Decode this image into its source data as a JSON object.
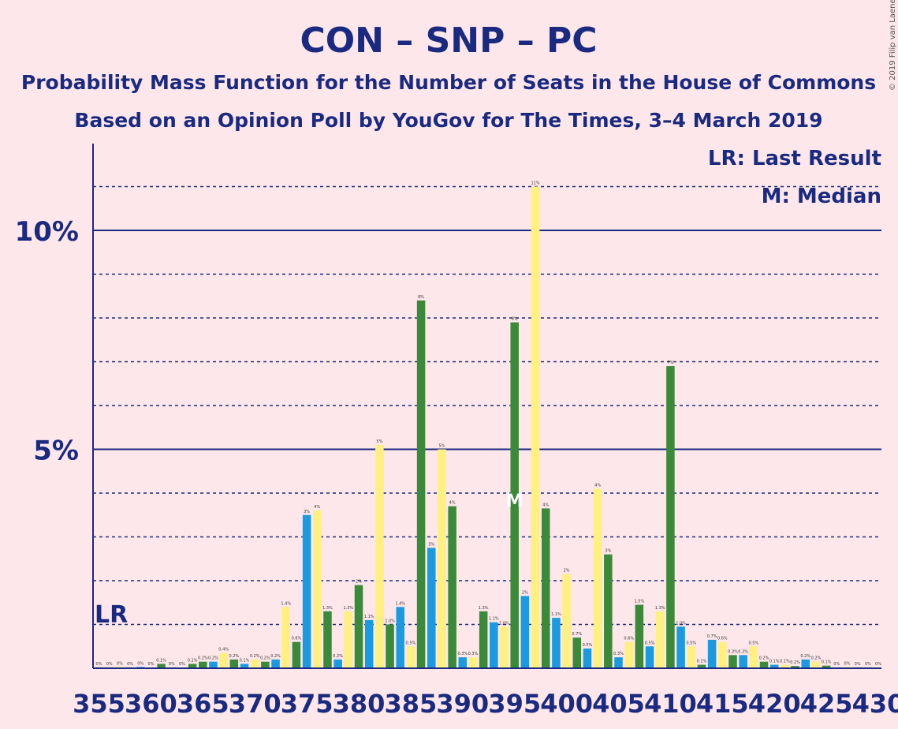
{
  "title": "CON – SNP – PC",
  "subtitle": "Probability Mass Function for the Number of Seats in the House of Commons",
  "subtitle2": "Based on an Opinion Poll by YouGov for The Times, 3–4 March 2019",
  "copyright": "© 2019 Filip van Laenen",
  "legend": {
    "lr": "LR: Last Result",
    "m": "M: Median"
  },
  "markers": {
    "lr_label": "LR",
    "lr_seat": 355,
    "median_label": "M",
    "median_seat": 395
  },
  "colors": {
    "green": "#3a8a3a",
    "blue": "#1a9ae0",
    "yellow": "#fff080",
    "navy": "#1a2a80",
    "background": "#fde7ea"
  },
  "chart_data": {
    "type": "bar",
    "x_ticks": [
      355,
      360,
      365,
      370,
      375,
      380,
      385,
      390,
      395,
      400,
      405,
      410,
      415,
      420,
      425,
      430
    ],
    "y_ticks": [
      {
        "value": 5,
        "label": "5%"
      },
      {
        "value": 10,
        "label": "10%"
      }
    ],
    "ylim": [
      0,
      12
    ],
    "xlim": [
      355,
      430
    ],
    "bars": [
      {
        "seat": 355,
        "value": 0.02,
        "label": "0%",
        "color": "green"
      },
      {
        "seat": 356,
        "value": 0.02,
        "label": "0%",
        "color": "blue"
      },
      {
        "seat": 357,
        "value": 0.03,
        "label": "0%",
        "color": "yellow"
      },
      {
        "seat": 358,
        "value": 0.02,
        "label": "0%",
        "color": "green"
      },
      {
        "seat": 359,
        "value": 0.03,
        "label": "0%",
        "color": "blue"
      },
      {
        "seat": 360,
        "value": 0.02,
        "label": "0%",
        "color": "yellow"
      },
      {
        "seat": 361,
        "value": 0.1,
        "label": "0.1%",
        "color": "green"
      },
      {
        "seat": 362,
        "value": 0.02,
        "label": "0%",
        "color": "blue"
      },
      {
        "seat": 363,
        "value": 0.02,
        "label": "0%",
        "color": "yellow"
      },
      {
        "seat": 364,
        "value": 0.1,
        "label": "0.1%",
        "color": "green"
      },
      {
        "seat": 365,
        "value": 0.15,
        "label": "0.2%",
        "color": "green"
      },
      {
        "seat": 366,
        "value": 0.15,
        "label": "0.2%",
        "color": "blue"
      },
      {
        "seat": 367,
        "value": 0.35,
        "label": "0.4%",
        "color": "yellow"
      },
      {
        "seat": 368,
        "value": 0.2,
        "label": "0.2%",
        "color": "green"
      },
      {
        "seat": 369,
        "value": 0.1,
        "label": "0.1%",
        "color": "blue"
      },
      {
        "seat": 370,
        "value": 0.2,
        "label": "0.2%",
        "color": "yellow"
      },
      {
        "seat": 371,
        "value": 0.15,
        "label": "0.2%",
        "color": "green"
      },
      {
        "seat": 372,
        "value": 0.2,
        "label": "0.2%",
        "color": "blue"
      },
      {
        "seat": 373,
        "value": 1.4,
        "label": "1.4%",
        "color": "yellow"
      },
      {
        "seat": 374,
        "value": 0.6,
        "label": "0.6%",
        "color": "green"
      },
      {
        "seat": 375,
        "value": 3.5,
        "label": "3%",
        "color": "blue"
      },
      {
        "seat": 376,
        "value": 3.6,
        "label": "4%",
        "color": "yellow"
      },
      {
        "seat": 377,
        "value": 1.3,
        "label": "1.3%",
        "color": "green"
      },
      {
        "seat": 378,
        "value": 0.2,
        "label": "0.2%",
        "color": "blue"
      },
      {
        "seat": 379,
        "value": 1.3,
        "label": "1.3%",
        "color": "yellow"
      },
      {
        "seat": 380,
        "value": 1.9,
        "label": "2%",
        "color": "green"
      },
      {
        "seat": 381,
        "value": 1.1,
        "label": "1.1%",
        "color": "blue"
      },
      {
        "seat": 382,
        "value": 5.1,
        "label": "5%",
        "color": "yellow"
      },
      {
        "seat": 383,
        "value": 1.0,
        "label": "1.0%",
        "color": "green"
      },
      {
        "seat": 384,
        "value": 1.4,
        "label": "1.4%",
        "color": "blue"
      },
      {
        "seat": 385,
        "value": 0.5,
        "label": "0.5%",
        "color": "yellow"
      },
      {
        "seat": 386,
        "value": 8.4,
        "label": "8%",
        "color": "green"
      },
      {
        "seat": 387,
        "value": 2.75,
        "label": "3%",
        "color": "blue"
      },
      {
        "seat": 388,
        "value": 5.0,
        "label": "5%",
        "color": "yellow"
      },
      {
        "seat": 389,
        "value": 3.7,
        "label": "4%",
        "color": "green"
      },
      {
        "seat": 390,
        "value": 0.25,
        "label": "0.3%",
        "color": "blue"
      },
      {
        "seat": 391,
        "value": 0.25,
        "label": "0.3%",
        "color": "yellow"
      },
      {
        "seat": 392,
        "value": 1.3,
        "label": "1.3%",
        "color": "green"
      },
      {
        "seat": 393,
        "value": 1.05,
        "label": "1.1%",
        "color": "blue"
      },
      {
        "seat": 394,
        "value": 0.95,
        "label": "1.0%",
        "color": "yellow"
      },
      {
        "seat": 395,
        "value": 7.9,
        "label": "8%",
        "color": "green"
      },
      {
        "seat": 396,
        "value": 1.65,
        "label": "2%",
        "color": "blue"
      },
      {
        "seat": 397,
        "value": 11.0,
        "label": "11%",
        "color": "yellow"
      },
      {
        "seat": 398,
        "value": 3.65,
        "label": "4%",
        "color": "green"
      },
      {
        "seat": 399,
        "value": 1.15,
        "label": "1.1%",
        "color": "blue"
      },
      {
        "seat": 400,
        "value": 2.15,
        "label": "2%",
        "color": "yellow"
      },
      {
        "seat": 401,
        "value": 0.7,
        "label": "0.7%",
        "color": "green"
      },
      {
        "seat": 402,
        "value": 0.45,
        "label": "0.5%",
        "color": "blue"
      },
      {
        "seat": 403,
        "value": 4.1,
        "label": "4%",
        "color": "yellow"
      },
      {
        "seat": 404,
        "value": 2.6,
        "label": "3%",
        "color": "green"
      },
      {
        "seat": 405,
        "value": 0.25,
        "label": "0.3%",
        "color": "blue"
      },
      {
        "seat": 406,
        "value": 0.6,
        "label": "0.6%",
        "color": "yellow"
      },
      {
        "seat": 407,
        "value": 1.45,
        "label": "1.5%",
        "color": "green"
      },
      {
        "seat": 408,
        "value": 0.5,
        "label": "0.5%",
        "color": "blue"
      },
      {
        "seat": 409,
        "value": 1.3,
        "label": "1.3%",
        "color": "yellow"
      },
      {
        "seat": 410,
        "value": 6.9,
        "label": "7%",
        "color": "green"
      },
      {
        "seat": 411,
        "value": 0.95,
        "label": "1.0%",
        "color": "blue"
      },
      {
        "seat": 412,
        "value": 0.5,
        "label": "0.5%",
        "color": "yellow"
      },
      {
        "seat": 413,
        "value": 0.08,
        "label": "0.1%",
        "color": "green"
      },
      {
        "seat": 414,
        "value": 0.65,
        "label": "0.7%",
        "color": "blue"
      },
      {
        "seat": 415,
        "value": 0.6,
        "label": "0.6%",
        "color": "yellow"
      },
      {
        "seat": 416,
        "value": 0.3,
        "label": "0.3%",
        "color": "green"
      },
      {
        "seat": 417,
        "value": 0.3,
        "label": "0.3%",
        "color": "blue"
      },
      {
        "seat": 418,
        "value": 0.5,
        "label": "0.5%",
        "color": "yellow"
      },
      {
        "seat": 419,
        "value": 0.15,
        "label": "0.2%",
        "color": "green"
      },
      {
        "seat": 420,
        "value": 0.08,
        "label": "0.1%",
        "color": "blue"
      },
      {
        "seat": 421,
        "value": 0.08,
        "label": "0.1%",
        "color": "yellow"
      },
      {
        "seat": 422,
        "value": 0.05,
        "label": "0.1%",
        "color": "green"
      },
      {
        "seat": 423,
        "value": 0.2,
        "label": "0.2%",
        "color": "blue"
      },
      {
        "seat": 424,
        "value": 0.15,
        "label": "0.2%",
        "color": "yellow"
      },
      {
        "seat": 425,
        "value": 0.06,
        "label": "0.1%",
        "color": "green"
      },
      {
        "seat": 426,
        "value": 0.02,
        "label": "0%",
        "color": "blue"
      },
      {
        "seat": 427,
        "value": 0.03,
        "label": "0%",
        "color": "yellow"
      },
      {
        "seat": 428,
        "value": 0.02,
        "label": "0%",
        "color": "green"
      },
      {
        "seat": 429,
        "value": 0.02,
        "label": "0%",
        "color": "blue"
      },
      {
        "seat": 430,
        "value": 0.02,
        "label": "0%",
        "color": "yellow"
      }
    ]
  }
}
